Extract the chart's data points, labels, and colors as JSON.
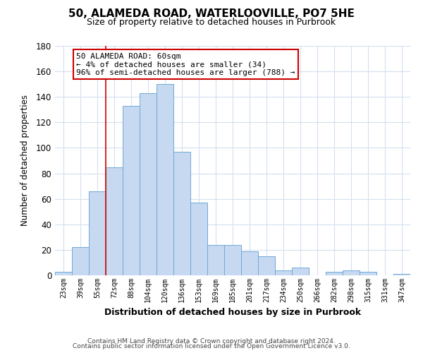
{
  "title": "50, ALAMEDA ROAD, WATERLOOVILLE, PO7 5HE",
  "subtitle": "Size of property relative to detached houses in Purbrook",
  "xlabel": "Distribution of detached houses by size in Purbrook",
  "ylabel": "Number of detached properties",
  "bar_labels": [
    "23sqm",
    "39sqm",
    "55sqm",
    "72sqm",
    "88sqm",
    "104sqm",
    "120sqm",
    "136sqm",
    "153sqm",
    "169sqm",
    "185sqm",
    "201sqm",
    "217sqm",
    "234sqm",
    "250sqm",
    "266sqm",
    "282sqm",
    "298sqm",
    "315sqm",
    "331sqm",
    "347sqm"
  ],
  "bar_values": [
    3,
    22,
    66,
    85,
    133,
    143,
    150,
    97,
    57,
    24,
    24,
    19,
    15,
    4,
    6,
    0,
    3,
    4,
    3,
    0,
    1
  ],
  "bar_color": "#c7d9f0",
  "bar_edge_color": "#6ea8d8",
  "ylim": [
    0,
    180
  ],
  "yticks": [
    0,
    20,
    40,
    60,
    80,
    100,
    120,
    140,
    160,
    180
  ],
  "vline_index": 2,
  "vline_color": "#cc0000",
  "annotation_title": "50 ALAMEDA ROAD: 60sqm",
  "annotation_line1": "← 4% of detached houses are smaller (34)",
  "annotation_line2": "96% of semi-detached houses are larger (788) →",
  "annotation_box_color": "#ffffff",
  "annotation_box_edge": "#cc0000",
  "footer1": "Contains HM Land Registry data © Crown copyright and database right 2024.",
  "footer2": "Contains public sector information licensed under the Open Government Licence v3.0.",
  "background_color": "#ffffff",
  "grid_color": "#d4dff0"
}
